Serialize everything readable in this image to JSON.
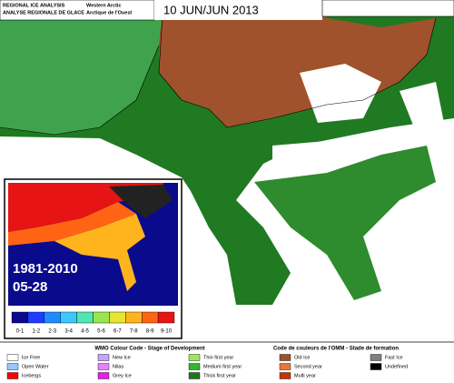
{
  "header": {
    "title_en": "REGIONAL ICE ANALYSIS",
    "title_fr": "ANALYSE REGIONALE DE GLACE",
    "region_en": "Western Arctic",
    "region_fr": "Arctique de l'Ouest",
    "date": "10 JUN/JUN 2013"
  },
  "inset": {
    "period": "1981-2010",
    "date": "05-28",
    "scale": [
      "0-1",
      "1-2",
      "2-3",
      "3-4",
      "4-5",
      "5-6",
      "6-7",
      "7-8",
      "8-9",
      "9-10"
    ],
    "colors": [
      "#0a0a8c",
      "#1e3cff",
      "#1e8cff",
      "#3cc8ff",
      "#50e6b4",
      "#9be650",
      "#e6e632",
      "#ffb41e",
      "#ff6414",
      "#e61414"
    ]
  },
  "legend": {
    "title_en": "WMO Colour Code - Stage of Development",
    "title_fr": "Code de couleurs de l'OMM - Stade de formation",
    "items": [
      {
        "label": "Ice Free",
        "color": "#ffffff"
      },
      {
        "label": "Open Water",
        "color": "#96c8ff"
      },
      {
        "label": "Icebergs",
        "color": "#ff0000"
      },
      {
        "label": "New Ice",
        "color": "#c8a0ff"
      },
      {
        "label": "Nilas",
        "color": "#e682ff"
      },
      {
        "label": "Grey Ice",
        "color": "#e61ee6"
      },
      {
        "label": "Thin first year",
        "color": "#a0e65a"
      },
      {
        "label": "Medium first year",
        "color": "#32b432"
      },
      {
        "label": "Thick first year",
        "color": "#1e7820"
      },
      {
        "label": "Old Ice",
        "color": "#a0522d"
      },
      {
        "label": "Second year",
        "color": "#e6783c"
      },
      {
        "label": "Multi year",
        "color": "#c83200"
      },
      {
        "label": "Fast Ice",
        "color": "#808080"
      },
      {
        "label": "Undefined",
        "color": "#000000"
      }
    ]
  }
}
